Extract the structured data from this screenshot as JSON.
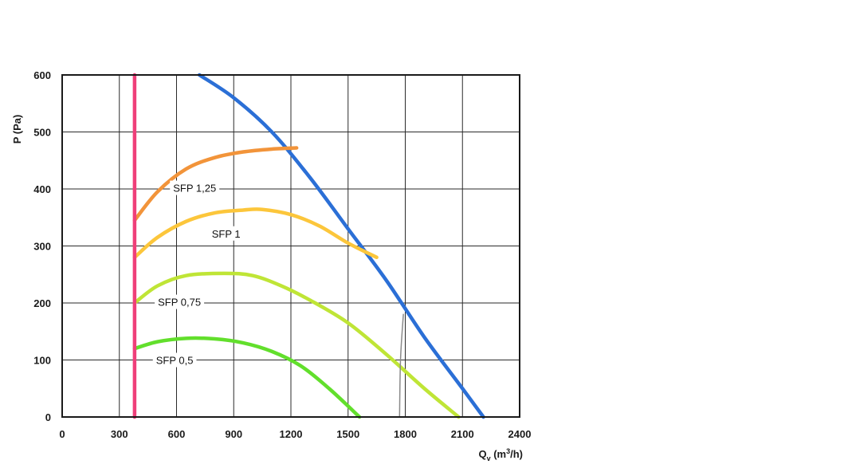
{
  "chart_data": {
    "type": "line",
    "xlabel": "Q",
    "xlabel_sub": "v",
    "xlabel_unit_pre": " (m",
    "xlabel_unit_sup": "3",
    "xlabel_unit_post": "/h)",
    "ylabel": "P (Pa)",
    "xlim": [
      0,
      2400
    ],
    "ylim": [
      0,
      600
    ],
    "x_ticks": [
      "0",
      "300",
      "600",
      "900",
      "1200",
      "1500",
      "1800",
      "2100",
      "2400"
    ],
    "y_ticks": [
      "0",
      "100",
      "200",
      "300",
      "400",
      "500",
      "600"
    ],
    "grid": true,
    "series": [
      {
        "color": "#2b6fd6",
        "points": [
          [
            720,
            600
          ],
          [
            900,
            560
          ],
          [
            1100,
            500
          ],
          [
            1300,
            420
          ],
          [
            1500,
            330
          ],
          [
            1700,
            240
          ],
          [
            1900,
            140
          ],
          [
            2100,
            50
          ],
          [
            2210,
            0
          ]
        ]
      },
      {
        "color": "#f2943a",
        "points": [
          [
            380,
            345
          ],
          [
            500,
            395
          ],
          [
            650,
            435
          ],
          [
            800,
            455
          ],
          [
            950,
            465
          ],
          [
            1100,
            470
          ],
          [
            1230,
            472
          ]
        ]
      },
      {
        "color": "#fcc63b",
        "points": [
          [
            380,
            280
          ],
          [
            500,
            315
          ],
          [
            650,
            343
          ],
          [
            800,
            358
          ],
          [
            950,
            363
          ],
          [
            1050,
            364
          ],
          [
            1200,
            355
          ],
          [
            1350,
            335
          ],
          [
            1500,
            305
          ],
          [
            1650,
            280
          ]
        ]
      },
      {
        "color": "#bfe536",
        "points": [
          [
            380,
            200
          ],
          [
            500,
            230
          ],
          [
            650,
            248
          ],
          [
            850,
            252
          ],
          [
            1000,
            248
          ],
          [
            1150,
            230
          ],
          [
            1300,
            205
          ],
          [
            1500,
            165
          ],
          [
            1700,
            110
          ],
          [
            1900,
            50
          ],
          [
            2080,
            0
          ]
        ]
      },
      {
        "color": "#62df2c",
        "points": [
          [
            380,
            120
          ],
          [
            500,
            132
          ],
          [
            650,
            138
          ],
          [
            800,
            137
          ],
          [
            950,
            130
          ],
          [
            1100,
            115
          ],
          [
            1250,
            90
          ],
          [
            1400,
            50
          ],
          [
            1560,
            0
          ]
        ]
      },
      {
        "color": "#ef3f7a",
        "points": [
          [
            380,
            0
          ],
          [
            380,
            600
          ]
        ]
      },
      {
        "color": "#8a8a8a",
        "points": [
          [
            1770,
            0
          ],
          [
            1775,
            100
          ],
          [
            1790,
            180
          ]
        ]
      }
    ],
    "annotations": [
      {
        "text": "SFP 1,25",
        "x": 695,
        "y": 402
      },
      {
        "text": "SFP 1",
        "x": 860,
        "y": 322
      },
      {
        "text": "SFP 0,75",
        "x": 615,
        "y": 202
      },
      {
        "text": "SFP 0,5",
        "x": 590,
        "y": 100
      }
    ]
  }
}
